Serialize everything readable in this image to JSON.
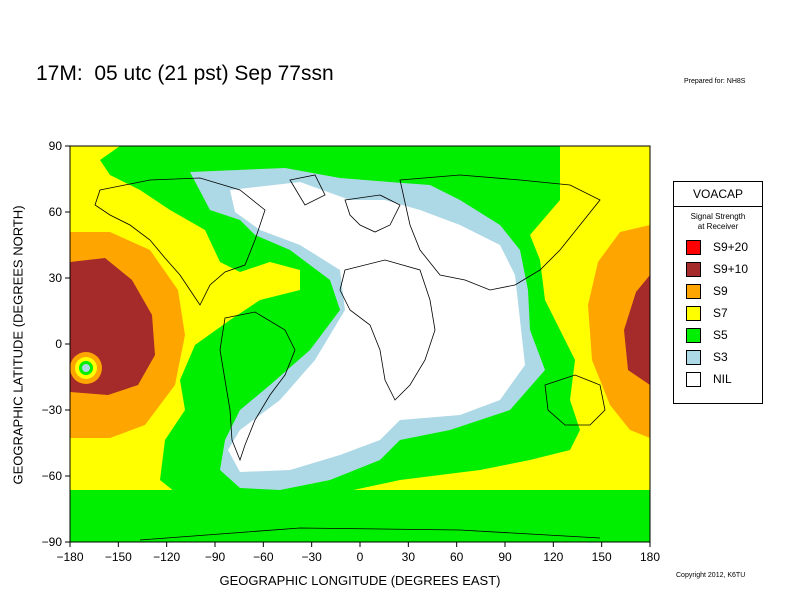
{
  "header": {
    "title": "17M:  05 utc (21 pst) Sep 77ssn",
    "prepared": "Prepared for: NH8S"
  },
  "footer": {
    "copyright": "Copyright 2012, K6TU"
  },
  "chart_data": {
    "type": "heatmap",
    "title": "17M:  05 utc (21 pst) Sep 77ssn",
    "xlabel": "GEOGRAPHIC LONGITUDE (DEGREES EAST)",
    "ylabel": "GEOGRAPHIC LATITUDE (DEGREES NORTH)",
    "xlim": [
      -180,
      180
    ],
    "ylim": [
      -90,
      90
    ],
    "xticks": [
      -180,
      -150,
      -120,
      -90,
      -60,
      -30,
      0,
      30,
      60,
      90,
      120,
      150,
      180
    ],
    "yticks": [
      90,
      60,
      30,
      0,
      -30,
      -60,
      -90
    ],
    "grid": false,
    "colors": {
      "S9+20": "#ff0000",
      "S9+10": "#a52a2a",
      "S9": "#ffa500",
      "S7": "#ffff00",
      "S5": "#00ee00",
      "S3": "#add8e6",
      "NIL": "#ffffff"
    }
  },
  "legend": {
    "title": "VOACAP",
    "subtitle_line1": "Signal Strength",
    "subtitle_line2": "at Receiver",
    "items": [
      {
        "label": "S9+20",
        "color": "#ff0000"
      },
      {
        "label": "S9+10",
        "color": "#a52a2a"
      },
      {
        "label": "S9",
        "color": "#ffa500"
      },
      {
        "label": "S7",
        "color": "#ffff00"
      },
      {
        "label": "S5",
        "color": "#00ee00"
      },
      {
        "label": "S3",
        "color": "#add8e6"
      },
      {
        "label": "NIL",
        "color": "#ffffff"
      }
    ]
  }
}
